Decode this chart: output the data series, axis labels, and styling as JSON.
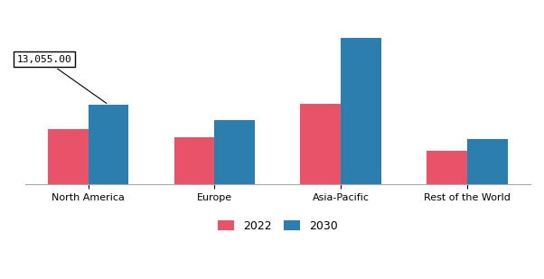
{
  "categories": [
    "North America",
    "Europe",
    "Asia-Pacific",
    "Rest of the World"
  ],
  "values_2022": [
    9000,
    7800,
    13200,
    5500
  ],
  "values_2030": [
    13055,
    10500,
    24000,
    7500
  ],
  "annotation_text": "13,055.00",
  "annotation_bar_index": 0,
  "color_2022": "#E8536A",
  "color_2030": "#2B7EAD",
  "legend_labels": [
    "2022",
    "2030"
  ],
  "bar_width": 0.32,
  "background_color": "#ffffff",
  "ylim": [
    0,
    28000
  ],
  "xlabel_fontsize": 8,
  "ylabel_fontsize": 8,
  "legend_fontsize": 9
}
